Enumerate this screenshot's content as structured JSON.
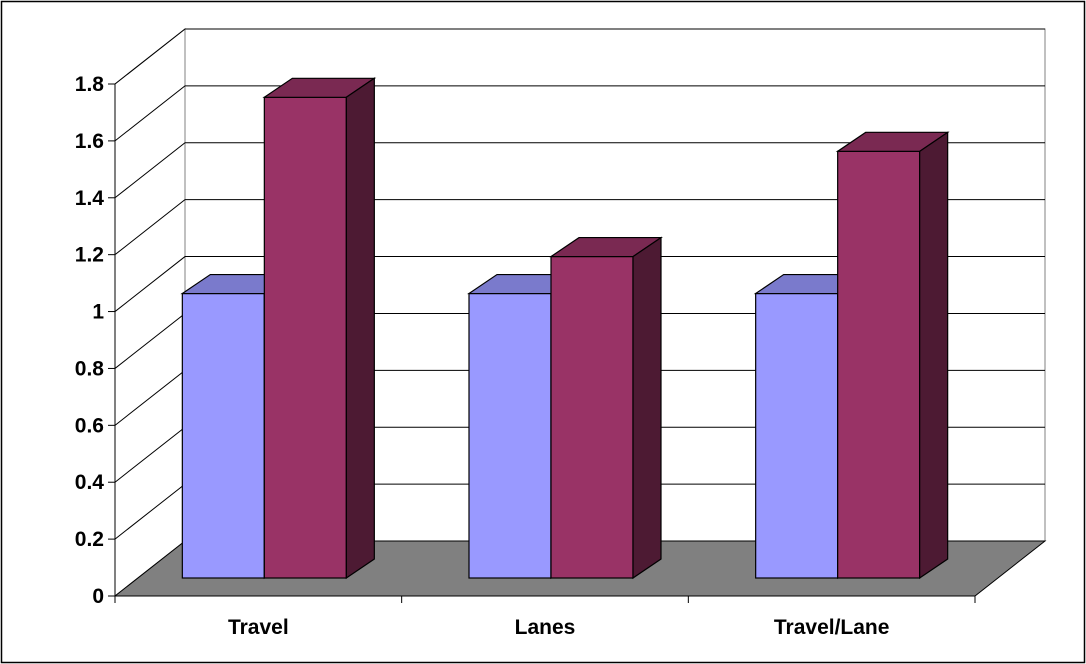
{
  "chart_data": {
    "type": "bar",
    "style": "3d-clustered-column",
    "categories": [
      "Travel",
      "Lanes",
      "Travel/Lane"
    ],
    "series": [
      {
        "values": [
          1.0,
          1.0,
          1.0
        ]
      },
      {
        "values": [
          1.69,
          1.13,
          1.5
        ]
      }
    ],
    "ylim": [
      0,
      1.8
    ],
    "yticks": [
      "0",
      "0.2",
      "0.4",
      "0.6",
      "0.8",
      "1",
      "1.2",
      "1.4",
      "1.6",
      "1.8"
    ],
    "grid": true,
    "legend": "none"
  },
  "colors": {
    "series_front": [
      "#9999FF",
      "#993366"
    ],
    "series_top": [
      "#7A7ACC",
      "#7A2952"
    ],
    "series_side": [
      "#4D4D80",
      "#4D1A33"
    ],
    "floor": "#808080",
    "grid": "#000000"
  }
}
